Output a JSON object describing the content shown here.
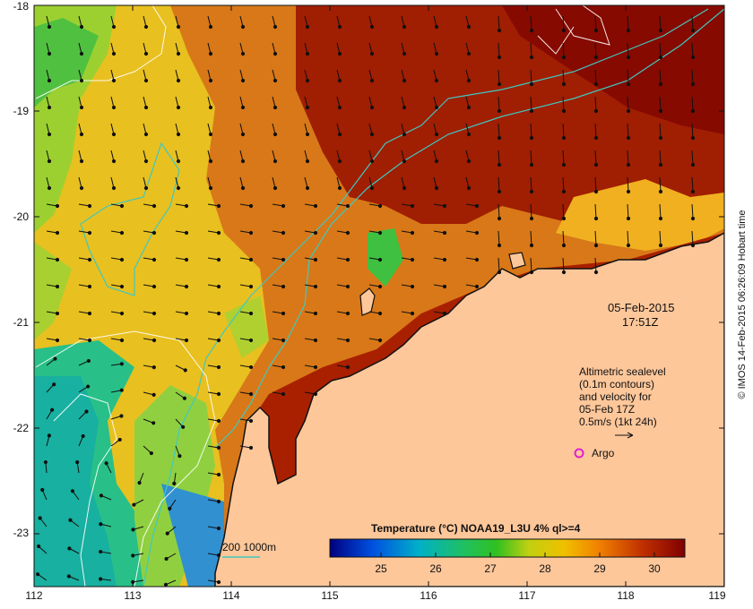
{
  "map": {
    "lat_ticks": [
      "-18",
      "-19",
      "-20",
      "-21",
      "-22",
      "-23"
    ],
    "lon_ticks": [
      "112",
      "113",
      "114",
      "115",
      "116",
      "117",
      "118",
      "119"
    ],
    "lat_range": [
      -23.5,
      -18
    ],
    "lon_range": [
      112,
      119
    ]
  },
  "timestamp": {
    "date": "05-Feb-2015",
    "time": "17:51Z"
  },
  "legend": {
    "lines": [
      "Altimetric sealevel",
      "(0.1m contours)",
      "and velocity for",
      "05-Feb 17Z",
      "0.5m/s (1kt 24h)"
    ],
    "argo_label": "Argo",
    "argo_color": "#e020d0",
    "depth_label": "200  1000m",
    "depth_color": "#40c8c0"
  },
  "colorbar": {
    "title": "Temperature (°C) NOAA19_L3U 4% ql>=4",
    "ticks": [
      "25",
      "26",
      "27",
      "28",
      "29",
      "30"
    ],
    "range": [
      24,
      30.5
    ]
  },
  "credit": "© IMOS 14-Feb-2015 06:26:09 Hobart time",
  "colors": {
    "land": "#fdc79a",
    "hot": "#8a0c00",
    "warm": "#d86a10",
    "mild": "#f0c020",
    "cool": "#60d040",
    "cold": "#20a8a0"
  }
}
